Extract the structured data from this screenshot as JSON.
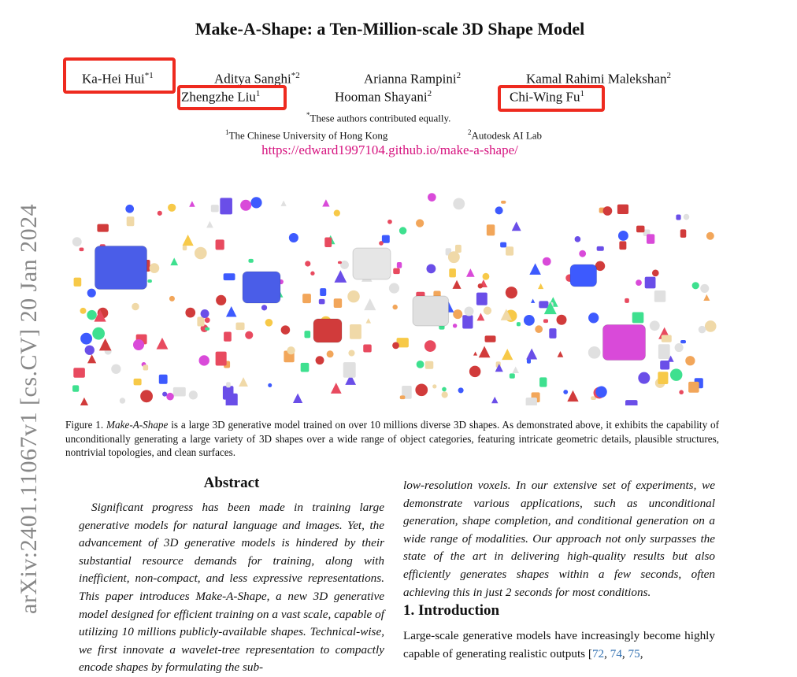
{
  "paper": {
    "title": "Make-A-Shape: a Ten-Million-scale 3D Shape Model",
    "authors": [
      {
        "name": "Ka-Hei Hui",
        "sup": "*1",
        "highlighted": true
      },
      {
        "name": "Aditya Sanghi",
        "sup": "*2",
        "highlighted": false
      },
      {
        "name": "Arianna Rampini",
        "sup": "2",
        "highlighted": false
      },
      {
        "name": "Kamal Rahimi Malekshan",
        "sup": "2",
        "highlighted": false
      },
      {
        "name": "Zhengzhe Liu",
        "sup": "1",
        "highlighted": true
      },
      {
        "name": "Hooman Shayani",
        "sup": "2",
        "highlighted": false
      },
      {
        "name": "Chi-Wing Fu",
        "sup": "1",
        "highlighted": true
      }
    ],
    "equal_contribution": {
      "sup": "*",
      "text": "These authors contributed equally."
    },
    "affiliations": [
      {
        "sup": "1",
        "text": "The Chinese University of Hong Kong"
      },
      {
        "sup": "2",
        "text": "Autodesk AI Lab"
      }
    ],
    "url": "https://edward1997104.github.io/make-a-shape/",
    "arxiv_id": "arXiv:2401.11067v1  [cs.CV]  20 Jan 2024",
    "highlight_color": "#ee2a1f",
    "link_color": "#d6137f",
    "figure": {
      "shape_colors": [
        "#e84a5f",
        "#3d5afe",
        "#3ee08f",
        "#f7c948",
        "#d94ad9",
        "#f2a65a",
        "#e0e0e0",
        "#6a4ee8",
        "#d13b3b",
        "#f0d9a8"
      ],
      "caption_label": "Figure 1.",
      "caption_italic": "Make-A-Shape",
      "caption_text": " is a large 3D generative model trained on over 10 millions diverse 3D shapes. As demonstrated above, it exhibits the capability of unconditionally generating a large variety of 3D shapes over a wide range of object categories, featuring intricate geometric details, plausible structures, nontrivial topologies, and clean surfaces."
    },
    "abstract": {
      "heading": "Abstract",
      "body": "Significant progress has been made in training large generative models for natural language and images. Yet, the advancement of 3D generative models is hindered by their substantial resource demands for training, along with inefficient, non-compact, and less expressive representations. This paper introduces Make-A-Shape, a new 3D generative model designed for efficient training on a vast scale, capable of utilizing 10 millions publicly-available shapes. Technical-wise, we first innovate a wavelet-tree representation to compactly encode shapes by formulating the sub-",
      "continuation": "low-resolution voxels. In our extensive set of experiments, we demonstrate various applications, such as unconditional generation, shape completion, and conditional generation on a wide range of modalities. Our approach not only surpasses the state of the art in delivering high-quality results but also efficiently generates shapes within a few seconds, often achieving this in just 2 seconds for most conditions."
    },
    "introduction": {
      "heading": "1. Introduction",
      "body_start": "Large-scale generative models have increasingly become highly capable of generating realistic outputs [",
      "citations": [
        "72",
        "74",
        "75"
      ],
      "body_end": ","
    }
  }
}
